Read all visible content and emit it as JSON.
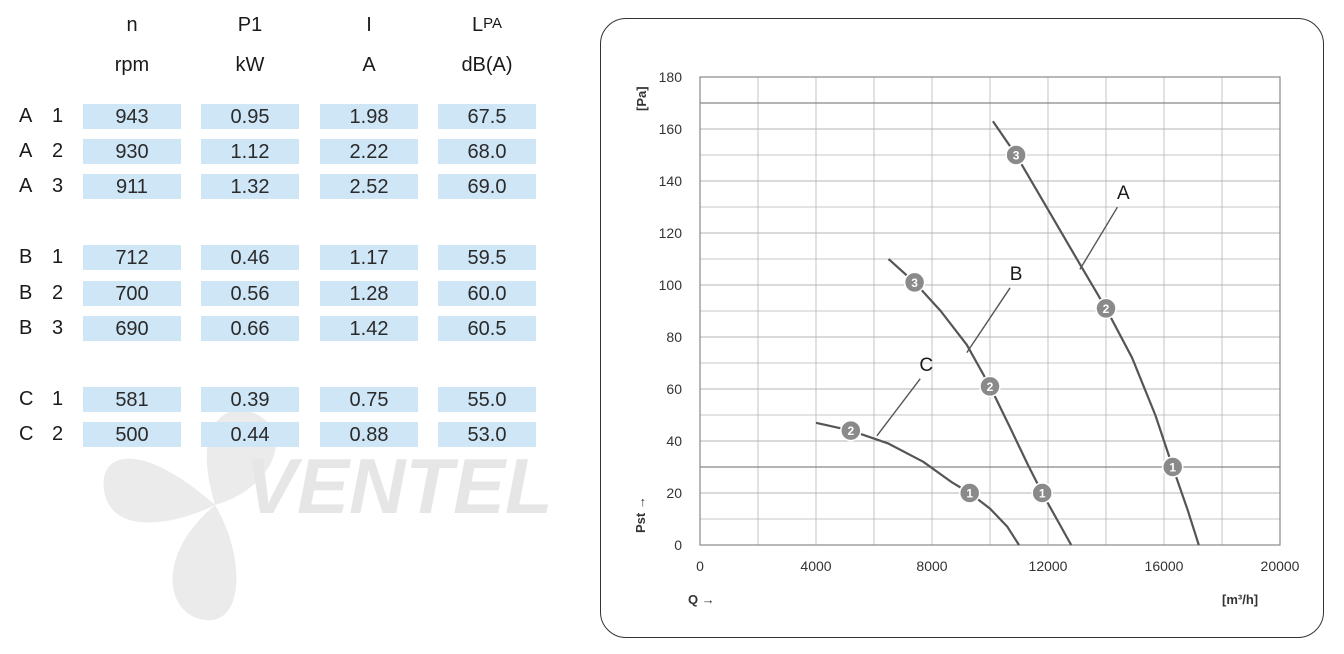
{
  "table": {
    "headers": [
      {
        "name": "n",
        "unit": "rpm"
      },
      {
        "name": "P1",
        "unit": "kW"
      },
      {
        "name": "I",
        "unit": "A"
      },
      {
        "name": "L",
        "name_sub": "PA",
        "unit": "dB(A)"
      }
    ],
    "rows": [
      {
        "group": "A",
        "idx": "1",
        "values": [
          "943",
          "0.95",
          "1.98",
          "67.5"
        ]
      },
      {
        "group": "A",
        "idx": "2",
        "values": [
          "930",
          "1.12",
          "2.22",
          "68.0"
        ]
      },
      {
        "group": "A",
        "idx": "3",
        "values": [
          "911",
          "1.32",
          "2.52",
          "69.0"
        ]
      },
      {
        "group": "B",
        "idx": "1",
        "values": [
          "712",
          "0.46",
          "1.17",
          "59.5"
        ]
      },
      {
        "group": "B",
        "idx": "2",
        "values": [
          "700",
          "0.56",
          "1.28",
          "60.0"
        ]
      },
      {
        "group": "B",
        "idx": "3",
        "values": [
          "690",
          "0.66",
          "1.42",
          "60.5"
        ]
      },
      {
        "group": "C",
        "idx": "1",
        "values": [
          "581",
          "0.39",
          "0.75",
          "55.0"
        ]
      },
      {
        "group": "C",
        "idx": "2",
        "values": [
          "500",
          "0.44",
          "0.88",
          "53.0"
        ]
      }
    ]
  },
  "watermark": {
    "text": "VENTEL"
  },
  "colors": {
    "cell_bg": "#cfe6f7",
    "curve": "#555555",
    "marker": "#8a8a8a",
    "grid": "#b5b5b5"
  },
  "chart_data": {
    "type": "line",
    "title": "",
    "xlabel": "Q →",
    "xunit": "[m³/h]",
    "ylabel": "Pst →",
    "yunit": "[Pa]",
    "xlim": [
      0,
      20000
    ],
    "ylim": [
      0,
      180
    ],
    "xticks": [
      0,
      4000,
      8000,
      12000,
      16000,
      20000
    ],
    "yticks": [
      0,
      20,
      40,
      60,
      80,
      100,
      120,
      140,
      160,
      180
    ],
    "grid": true,
    "series": [
      {
        "name": "A",
        "x": [
          10100,
          10900,
          12000,
          13100,
          14000,
          14900,
          15700,
          16300,
          16800,
          17200
        ],
        "y": [
          163,
          150,
          129,
          108,
          91,
          72,
          50,
          30,
          14,
          0
        ]
      },
      {
        "name": "B",
        "x": [
          6500,
          7400,
          8300,
          9200,
          10000,
          10700,
          11300,
          11800,
          12300,
          12800
        ],
        "y": [
          110,
          101,
          90,
          77,
          61,
          45,
          31,
          20,
          10,
          0
        ]
      },
      {
        "name": "C",
        "x": [
          4000,
          5200,
          6500,
          7700,
          8700,
          9300,
          10000,
          10600,
          11000
        ],
        "y": [
          47,
          44,
          39,
          32,
          24,
          20,
          14,
          7,
          0
        ]
      }
    ],
    "markers": [
      {
        "series": "A",
        "label": "3",
        "x": 10900,
        "y": 150
      },
      {
        "series": "A",
        "label": "2",
        "x": 14000,
        "y": 91
      },
      {
        "series": "A",
        "label": "1",
        "x": 16300,
        "y": 30
      },
      {
        "series": "B",
        "label": "3",
        "x": 7400,
        "y": 101
      },
      {
        "series": "B",
        "label": "2",
        "x": 10000,
        "y": 61
      },
      {
        "series": "B",
        "label": "1",
        "x": 11800,
        "y": 20
      },
      {
        "series": "C",
        "label": "2",
        "x": 5200,
        "y": 44
      },
      {
        "series": "C",
        "label": "1",
        "x": 9300,
        "y": 20
      }
    ],
    "curve_labels": [
      {
        "text": "A",
        "x": 14600,
        "y": 133,
        "lx": 13100,
        "ly": 106
      },
      {
        "text": "B",
        "x": 10900,
        "y": 102,
        "lx": 9200,
        "ly": 74
      },
      {
        "text": "C",
        "x": 7800,
        "y": 67,
        "lx": 6100,
        "ly": 42
      }
    ]
  }
}
